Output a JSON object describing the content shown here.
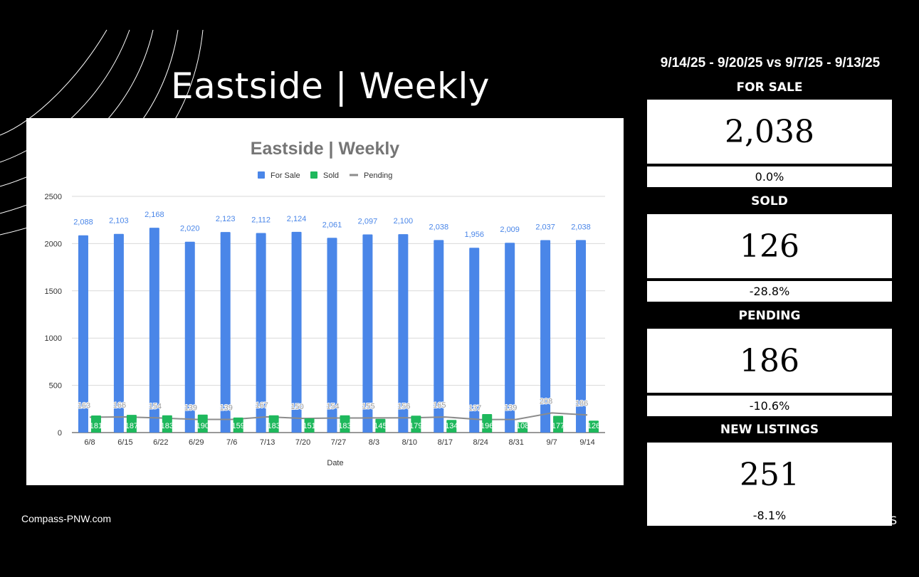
{
  "slide": {
    "title": "Eastside | Weekly",
    "date_range": "9/14/25 - 9/20/25 vs 9/7/25 - 9/13/25",
    "footer": "Compass-PNW.com",
    "edge_glyph": "S"
  },
  "stats": [
    {
      "label": "FOR SALE",
      "value": "2,038",
      "change": "0.0%"
    },
    {
      "label": "SOLD",
      "value": "126",
      "change": "-28.8%"
    },
    {
      "label": "PENDING",
      "value": "186",
      "change": "-10.6%"
    },
    {
      "label": "NEW LISTINGS",
      "value": "251",
      "change": "-8.1%"
    }
  ],
  "colors": {
    "for_sale": "#4a86e8",
    "sold": "#1eb85c",
    "pending": "#8c8c8c",
    "title_gray": "#757575"
  },
  "chart_data": {
    "type": "bar",
    "title": "Eastside | Weekly",
    "xlabel": "Date",
    "ylabel": "",
    "ylim": [
      0,
      2500
    ],
    "yticks": [
      0,
      500,
      1000,
      1500,
      2000,
      2500
    ],
    "legend_position": "top",
    "grid": true,
    "categories": [
      "6/8",
      "6/15",
      "6/22",
      "6/29",
      "7/6",
      "7/13",
      "7/20",
      "7/27",
      "8/3",
      "8/10",
      "8/17",
      "8/24",
      "8/31",
      "9/7",
      "9/14"
    ],
    "series": [
      {
        "name": "For Sale",
        "kind": "bar",
        "values": [
          2088,
          2103,
          2168,
          2020,
          2123,
          2112,
          2124,
          2061,
          2097,
          2100,
          2038,
          1956,
          2009,
          2037,
          2038
        ],
        "labels": [
          "2,088",
          "2,103",
          "2,168",
          "2,020",
          "2,123",
          "2,112",
          "2,124",
          "2,061",
          "2,097",
          "2,100",
          "2,038",
          "1,956",
          "2,009",
          "2,037",
          "2,038"
        ]
      },
      {
        "name": "Sold",
        "kind": "bar",
        "values": [
          181,
          187,
          183,
          190,
          159,
          183,
          151,
          183,
          145,
          179,
          134,
          196,
          108,
          177,
          126
        ],
        "labels": [
          "181",
          "187",
          "183",
          "190",
          "159",
          "183",
          "151",
          "183",
          "145",
          "179",
          "134",
          "196",
          "108",
          "177",
          "126"
        ]
      },
      {
        "name": "Pending",
        "kind": "line",
        "values": [
          163,
          166,
          154,
          139,
          139,
          167,
          150,
          154,
          155,
          156,
          165,
          137,
          139,
          208,
          186
        ],
        "labels": [
          "163",
          "166",
          "154",
          "139",
          "139",
          "167",
          "150",
          "154",
          "155",
          "156",
          "165",
          "137",
          "139",
          "208",
          "186"
        ]
      }
    ]
  }
}
